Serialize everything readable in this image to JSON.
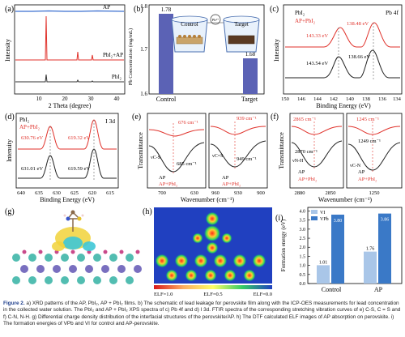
{
  "panels": {
    "a": {
      "label": "(a)",
      "xlabel": "2 Theta (degree)",
      "ylabel": "Intensity",
      "ticks": [
        "10",
        "20",
        "30",
        "40"
      ],
      "traces": [
        {
          "name": "AP",
          "color": "#3a6fd0"
        },
        {
          "name": "PbI₂+AP",
          "color": "#e0322b"
        },
        {
          "name": "PbI₂",
          "color": "#333333"
        }
      ]
    },
    "b": {
      "label": "(b)",
      "ylabel": "Pb Concentration (mg/mL)",
      "ticks": [
        "1.6",
        "1.7",
        "1.8"
      ],
      "categories": [
        "Control",
        "Target"
      ],
      "values": [
        1.78,
        1.68
      ],
      "value_labels": [
        "1.78",
        "1.68"
      ],
      "ylim": [
        1.6,
        1.8
      ],
      "bar_color": "#5b62b5",
      "inset": {
        "left": "Control",
        "right": "Target",
        "ion": "Pb²⁺"
      }
    },
    "c": {
      "label": "(c)",
      "xlabel": "Binding Energy (eV)",
      "ylabel": "Intensity",
      "tag": "Pb 4f",
      "ticks": [
        "150",
        "146",
        "144",
        "142",
        "140",
        "138",
        "136",
        "134"
      ],
      "legend": [
        "PbI₂",
        "AP+PbI₂"
      ],
      "ann_red": [
        "143.33 eV",
        "138.48 eV"
      ],
      "ann_black": [
        "143.54 eV",
        "138.66 eV"
      ]
    },
    "d": {
      "label": "(d)",
      "xlabel": "Binding Energy (eV)",
      "ylabel": "Intensity",
      "tag": "I 3d",
      "ticks": [
        "640",
        "635",
        "630",
        "625",
        "620",
        "615"
      ],
      "legend": [
        "PbI₂",
        "AP+PbI₂"
      ],
      "ann_red": [
        "630.76 eV",
        "619.32 eV"
      ],
      "ann_black": [
        "631.01 eV",
        "619.59 eV"
      ]
    },
    "e": {
      "label": "(e)",
      "xlabel": "Wavenumber (cm⁻¹)",
      "ylabel": "Transmittance",
      "ticks": [
        "700",
        "630",
        "960",
        "930",
        "900"
      ],
      "left": {
        "red": "676 cm⁻¹",
        "black": "685 cm⁻¹",
        "bond": "νC-S"
      },
      "right": {
        "red": "939 cm⁻¹",
        "black": "949 cm⁻¹",
        "bond": "νC=S"
      },
      "legend": [
        "AP",
        "AP+PbI₂"
      ]
    },
    "f": {
      "label": "(f)",
      "xlabel": "Wavenumber (cm⁻¹)",
      "ylabel": "Transmittance",
      "ticks": [
        "2880",
        "2850",
        "1250"
      ],
      "left": {
        "red": "2865 cm⁻¹",
        "black": "2870 cm⁻¹",
        "bond": "νN-H"
      },
      "right": {
        "red": "1245 cm⁻¹",
        "black": "1249 cm⁻¹",
        "bond": "νC-N"
      },
      "legend": [
        "AP",
        "AP+PbI₂"
      ]
    },
    "g": {
      "label": "(g)"
    },
    "h": {
      "label": "(h)",
      "colorbar": [
        "ELF=1.0",
        "ELF=0.5",
        "ELF=0.0"
      ]
    },
    "i": {
      "label": "(i)",
      "ylabel": "Formation energy (eV)",
      "ticks": [
        "0.0",
        "0.5",
        "1.0",
        "1.5",
        "2.0",
        "2.5",
        "3.0",
        "3.5",
        "4.0"
      ],
      "categories": [
        "Control",
        "AP"
      ],
      "series": [
        {
          "name": "VI",
          "values": [
            1.01,
            1.76
          ],
          "labels": [
            "1.01",
            "1.76"
          ],
          "color": "#a9c6e8"
        },
        {
          "name": "VPb",
          "values": [
            3.8,
            3.86
          ],
          "labels": [
            "3.80",
            "3.86"
          ],
          "color": "#3a79c7"
        }
      ],
      "ylim": [
        0,
        4.2
      ]
    }
  },
  "caption": {
    "label": "Figure 2.",
    "text": "a) XRD patterns of the AP, PbI₂, AP + PbI₂ films. b) The schematic of lead leakage for perovskite film along with the ICP-OES measurements for lead concentration in the collected water solution. The PbI₂ and AP + PbI₂ XPS spectra of c) Pb 4f and d) I 3d. FTIR spectra of the corresponding stretching vibration curves of e) C-S, C = S and f) C-N, N-H. g) Differential charge density distribution of the interfacial structures of the perovskite/AP. h) The DTF calculated ELF images of AP absorption on perovskite. i) The formation energies of VPb and VI for control and AP-perovskite."
  }
}
